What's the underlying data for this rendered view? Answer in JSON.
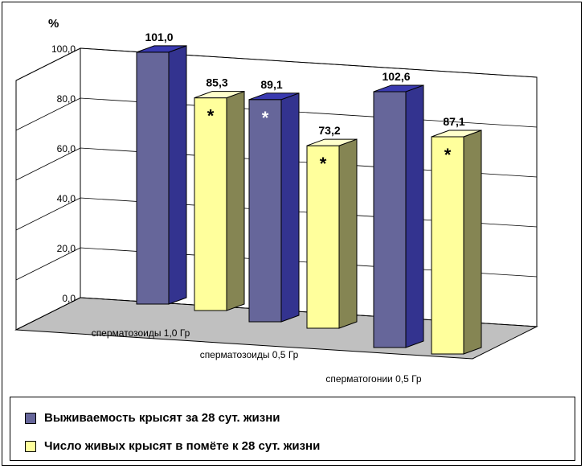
{
  "chart_data": {
    "type": "bar",
    "unit_label": "%",
    "categories": [
      "сперматозоиды 1,0 Гр",
      "сперматозоиды 0,5 Гр",
      "сперматогонии 0,5 Гр"
    ],
    "series": [
      {
        "name": "Выживаемость крысят за 28 сут. жизни",
        "values": [
          101.0,
          89.1,
          102.6
        ],
        "labels": [
          "101,0",
          "89,1",
          "102,6"
        ],
        "significant": [
          false,
          true,
          false
        ],
        "color": "#66669a",
        "color_dark": "#33338f",
        "color_top": "#3a3ab0"
      },
      {
        "name": "Число живых крысят в помёте к 28 сут. жизни",
        "values": [
          85.3,
          73.2,
          87.1
        ],
        "labels": [
          "85,3",
          "73,2",
          "87,1"
        ],
        "significant": [
          true,
          true,
          true
        ],
        "color": "#ffff9c",
        "color_dark": "#858553",
        "color_top": "#ffffcc"
      }
    ],
    "ylim": [
      0,
      100
    ],
    "yticks": [
      "0,0",
      "20,0",
      "40,0",
      "60,0",
      "80,0",
      "100,0"
    ],
    "significance_marker": "*",
    "grid": true,
    "legend_position": "bottom"
  },
  "legend": {
    "items": [
      {
        "label": "Выживаемость крысят за 28 сут. жизни",
        "color": "#66669a"
      },
      {
        "label": "Число живых крысят в помёте к 28 сут. жизни",
        "color": "#ffff9c"
      }
    ]
  }
}
